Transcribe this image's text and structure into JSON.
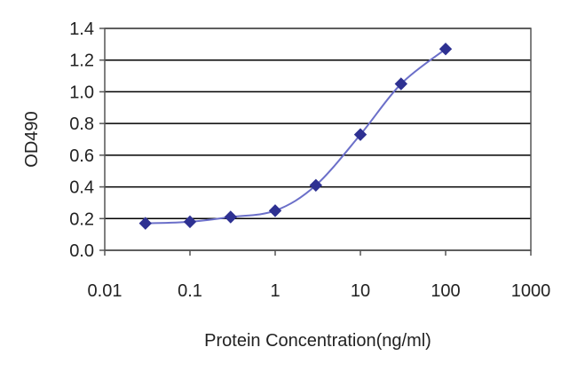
{
  "chart_data": {
    "type": "scatter",
    "title": "",
    "xlabel": "Protein Concentration(ng/ml)",
    "ylabel": "OD490",
    "x_scale": "log",
    "xlim": [
      0.01,
      1000
    ],
    "ylim": [
      0,
      1.4
    ],
    "x_ticks": [
      "0.01",
      "0.1",
      "1",
      "10",
      "100",
      "1000"
    ],
    "y_ticks": [
      "0.0",
      "0.2",
      "0.4",
      "0.6",
      "0.8",
      "1.0",
      "1.2",
      "1.4"
    ],
    "grid": "horizontal",
    "legend": "none",
    "series": [
      {
        "x": [
          0.03,
          0.1,
          0.3,
          1,
          3,
          10,
          30,
          100
        ],
        "y": [
          0.17,
          0.18,
          0.21,
          0.25,
          0.41,
          0.73,
          1.05,
          1.27
        ],
        "marker": "diamond",
        "fit_line": "sigmoid"
      }
    ],
    "colors": {
      "series": "#2e3192",
      "line": "#6b6fc9",
      "grid": "#000000"
    }
  }
}
